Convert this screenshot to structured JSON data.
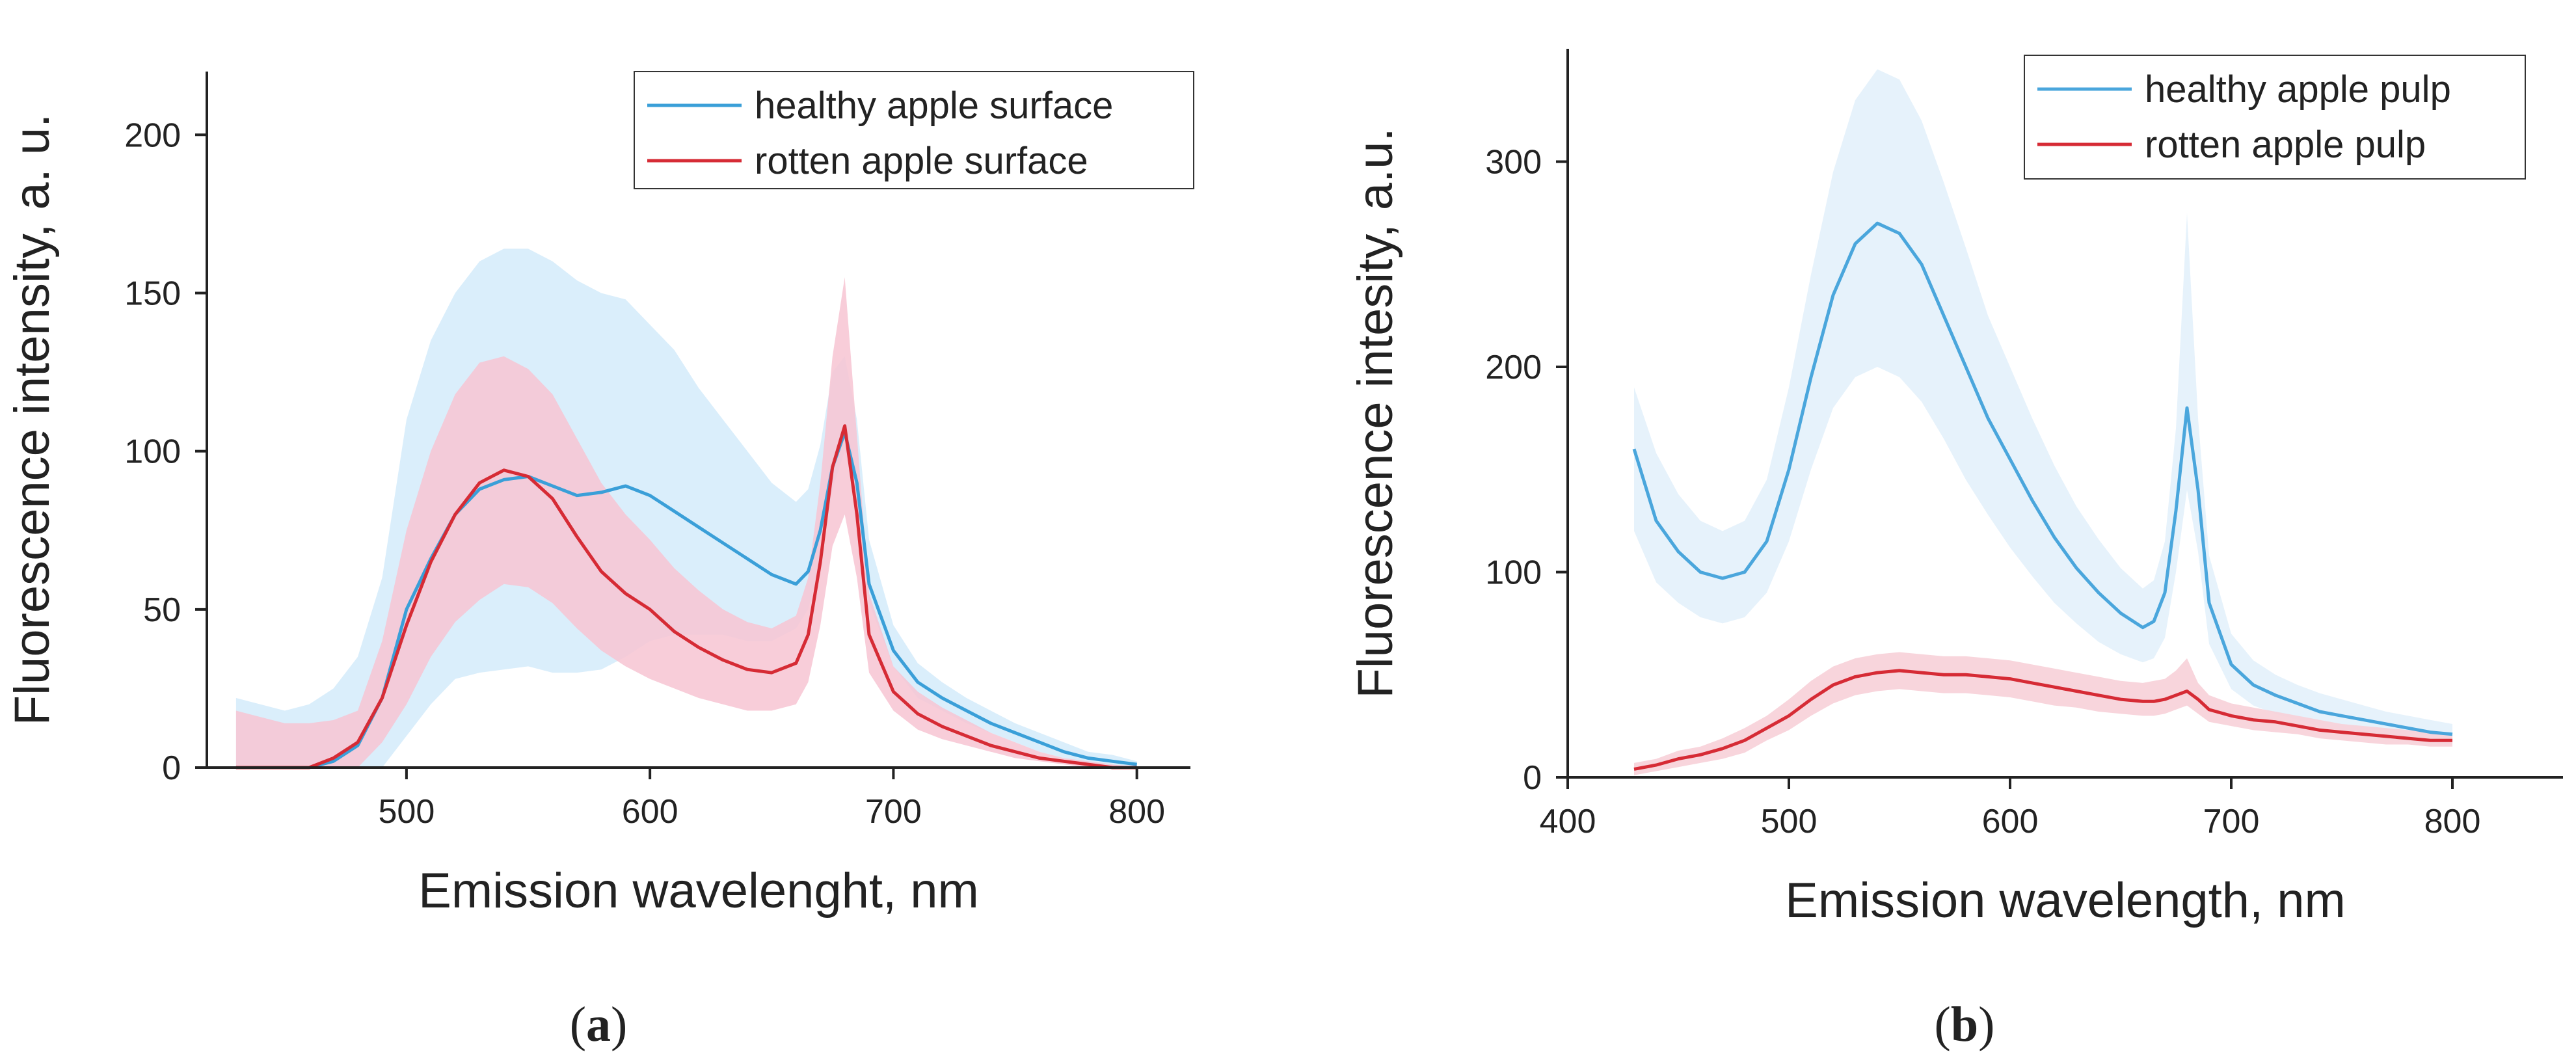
{
  "chart_data": [
    {
      "type": "line",
      "panel_label": "a",
      "title": "",
      "xlabel": "Emission wavelenght, nm",
      "ylabel": "Fluorescence intensity, a. u.",
      "xlim": [
        418,
        822
      ],
      "ylim": [
        0,
        220
      ],
      "xticks": [
        500,
        600,
        700,
        800
      ],
      "yticks": [
        0,
        50,
        100,
        150,
        200
      ],
      "xtick_labels": [
        "500",
        "600",
        "700",
        "800"
      ],
      "ytick_labels": [
        "0",
        "50",
        "100",
        "150",
        "200"
      ],
      "grid": false,
      "legend_position": "top-right",
      "x": [
        430,
        440,
        450,
        460,
        470,
        480,
        490,
        500,
        510,
        520,
        530,
        540,
        550,
        560,
        570,
        580,
        590,
        600,
        610,
        620,
        630,
        640,
        650,
        660,
        665,
        670,
        675,
        680,
        685,
        690,
        700,
        710,
        720,
        730,
        740,
        750,
        760,
        770,
        780,
        790,
        800
      ],
      "series": [
        {
          "name": "healthy apple surface",
          "color": "#3a9fd8",
          "band_color": "#d3ebfa",
          "values": [
            0,
            0,
            0,
            0,
            2,
            7,
            22,
            50,
            66,
            80,
            88,
            91,
            92,
            89,
            86,
            87,
            89,
            86,
            81,
            76,
            71,
            66,
            61,
            58,
            62,
            75,
            95,
            106,
            90,
            58,
            37,
            27,
            22,
            18,
            14,
            11,
            8,
            5,
            3,
            2,
            1
          ],
          "lower": [
            0,
            0,
            0,
            0,
            0,
            0,
            0,
            10,
            20,
            28,
            30,
            31,
            32,
            30,
            30,
            31,
            35,
            40,
            42,
            42,
            42,
            40,
            40,
            44,
            50,
            65,
            88,
            100,
            84,
            52,
            32,
            22,
            18,
            14,
            11,
            8,
            5,
            3,
            1,
            0,
            0
          ],
          "upper": [
            22,
            20,
            18,
            20,
            25,
            35,
            60,
            110,
            135,
            150,
            160,
            164,
            164,
            160,
            154,
            150,
            148,
            140,
            132,
            120,
            110,
            100,
            90,
            84,
            88,
            102,
            125,
            130,
            110,
            72,
            45,
            33,
            27,
            22,
            18,
            14,
            11,
            8,
            5,
            4,
            2
          ]
        },
        {
          "name": "rotten apple surface",
          "color": "#d62b35",
          "band_color": "#f7c4d2",
          "values": [
            0,
            0,
            0,
            0,
            3,
            8,
            22,
            45,
            65,
            80,
            90,
            94,
            92,
            85,
            73,
            62,
            55,
            50,
            43,
            38,
            34,
            31,
            30,
            33,
            42,
            65,
            95,
            108,
            80,
            42,
            24,
            17,
            13,
            10,
            7,
            5,
            3,
            2,
            1,
            0,
            0
          ],
          "lower": [
            0,
            0,
            0,
            0,
            0,
            0,
            8,
            20,
            35,
            46,
            53,
            58,
            57,
            52,
            44,
            37,
            32,
            28,
            25,
            22,
            20,
            18,
            18,
            20,
            27,
            45,
            70,
            80,
            60,
            30,
            18,
            12,
            9,
            7,
            5,
            3,
            2,
            1,
            0,
            0,
            0
          ],
          "upper": [
            18,
            16,
            14,
            14,
            15,
            18,
            40,
            75,
            100,
            118,
            128,
            130,
            126,
            118,
            104,
            90,
            80,
            72,
            63,
            56,
            50,
            46,
            44,
            48,
            60,
            90,
            130,
            155,
            105,
            55,
            32,
            24,
            19,
            15,
            11,
            8,
            5,
            3,
            2,
            1,
            0
          ]
        }
      ]
    },
    {
      "type": "line",
      "panel_label": "b",
      "title": "",
      "xlabel": "Emission wavelength, nm",
      "ylabel": "Fluorescence intesity, a.u.",
      "xlim": [
        400,
        850
      ],
      "ylim": [
        0,
        355
      ],
      "xticks": [
        400,
        500,
        600,
        700,
        800
      ],
      "yticks": [
        0,
        100,
        200,
        300
      ],
      "xtick_labels": [
        "400",
        "500",
        "600",
        "700",
        "800"
      ],
      "ytick_labels": [
        "0",
        "100",
        "200",
        "300"
      ],
      "grid": false,
      "legend_position": "top-right",
      "x": [
        430,
        440,
        450,
        460,
        470,
        480,
        490,
        500,
        510,
        520,
        530,
        540,
        550,
        560,
        570,
        580,
        590,
        600,
        610,
        620,
        630,
        640,
        650,
        660,
        665,
        670,
        675,
        680,
        685,
        690,
        700,
        710,
        720,
        730,
        740,
        750,
        760,
        770,
        780,
        790,
        800
      ],
      "series": [
        {
          "name": "healthy apple pulp",
          "color": "#4aa6dc",
          "band_color": "#e3f1fb",
          "values": [
            160,
            125,
            110,
            100,
            97,
            100,
            115,
            150,
            195,
            235,
            260,
            270,
            265,
            250,
            225,
            200,
            175,
            155,
            135,
            117,
            102,
            90,
            80,
            73,
            76,
            90,
            130,
            180,
            140,
            85,
            55,
            45,
            40,
            36,
            32,
            30,
            28,
            26,
            24,
            22,
            21
          ],
          "lower": [
            120,
            95,
            85,
            78,
            75,
            78,
            90,
            115,
            150,
            180,
            195,
            200,
            195,
            183,
            165,
            145,
            128,
            112,
            98,
            85,
            75,
            66,
            60,
            56,
            58,
            68,
            100,
            140,
            110,
            65,
            43,
            35,
            31,
            28,
            25,
            23,
            21,
            19,
            18,
            17,
            16
          ],
          "upper": [
            190,
            158,
            138,
            125,
            120,
            125,
            145,
            190,
            245,
            295,
            330,
            345,
            340,
            320,
            290,
            258,
            225,
            200,
            175,
            152,
            132,
            116,
            102,
            92,
            96,
            115,
            170,
            275,
            175,
            108,
            70,
            57,
            50,
            45,
            41,
            38,
            35,
            32,
            30,
            28,
            26
          ]
        },
        {
          "name": "rotten apple pulp",
          "color": "#d62b35",
          "band_color": "#f7d0d8",
          "values": [
            4,
            6,
            9,
            11,
            14,
            18,
            24,
            30,
            38,
            45,
            49,
            51,
            52,
            51,
            50,
            50,
            49,
            48,
            46,
            44,
            42,
            40,
            38,
            37,
            37,
            38,
            40,
            42,
            38,
            33,
            30,
            28,
            27,
            25,
            23,
            22,
            21,
            20,
            19,
            18,
            18
          ],
          "lower": [
            1,
            3,
            5,
            7,
            9,
            12,
            18,
            23,
            30,
            36,
            40,
            42,
            43,
            42,
            41,
            41,
            40,
            39,
            37,
            35,
            34,
            32,
            31,
            30,
            30,
            31,
            33,
            35,
            31,
            27,
            25,
            23,
            22,
            21,
            19,
            18,
            17,
            16,
            16,
            15,
            15
          ],
          "upper": [
            7,
            9,
            13,
            15,
            19,
            24,
            30,
            38,
            47,
            54,
            58,
            60,
            61,
            60,
            59,
            59,
            58,
            57,
            55,
            53,
            51,
            49,
            47,
            46,
            47,
            48,
            52,
            58,
            46,
            40,
            36,
            34,
            32,
            30,
            28,
            26,
            25,
            24,
            23,
            22,
            21
          ]
        }
      ]
    }
  ]
}
